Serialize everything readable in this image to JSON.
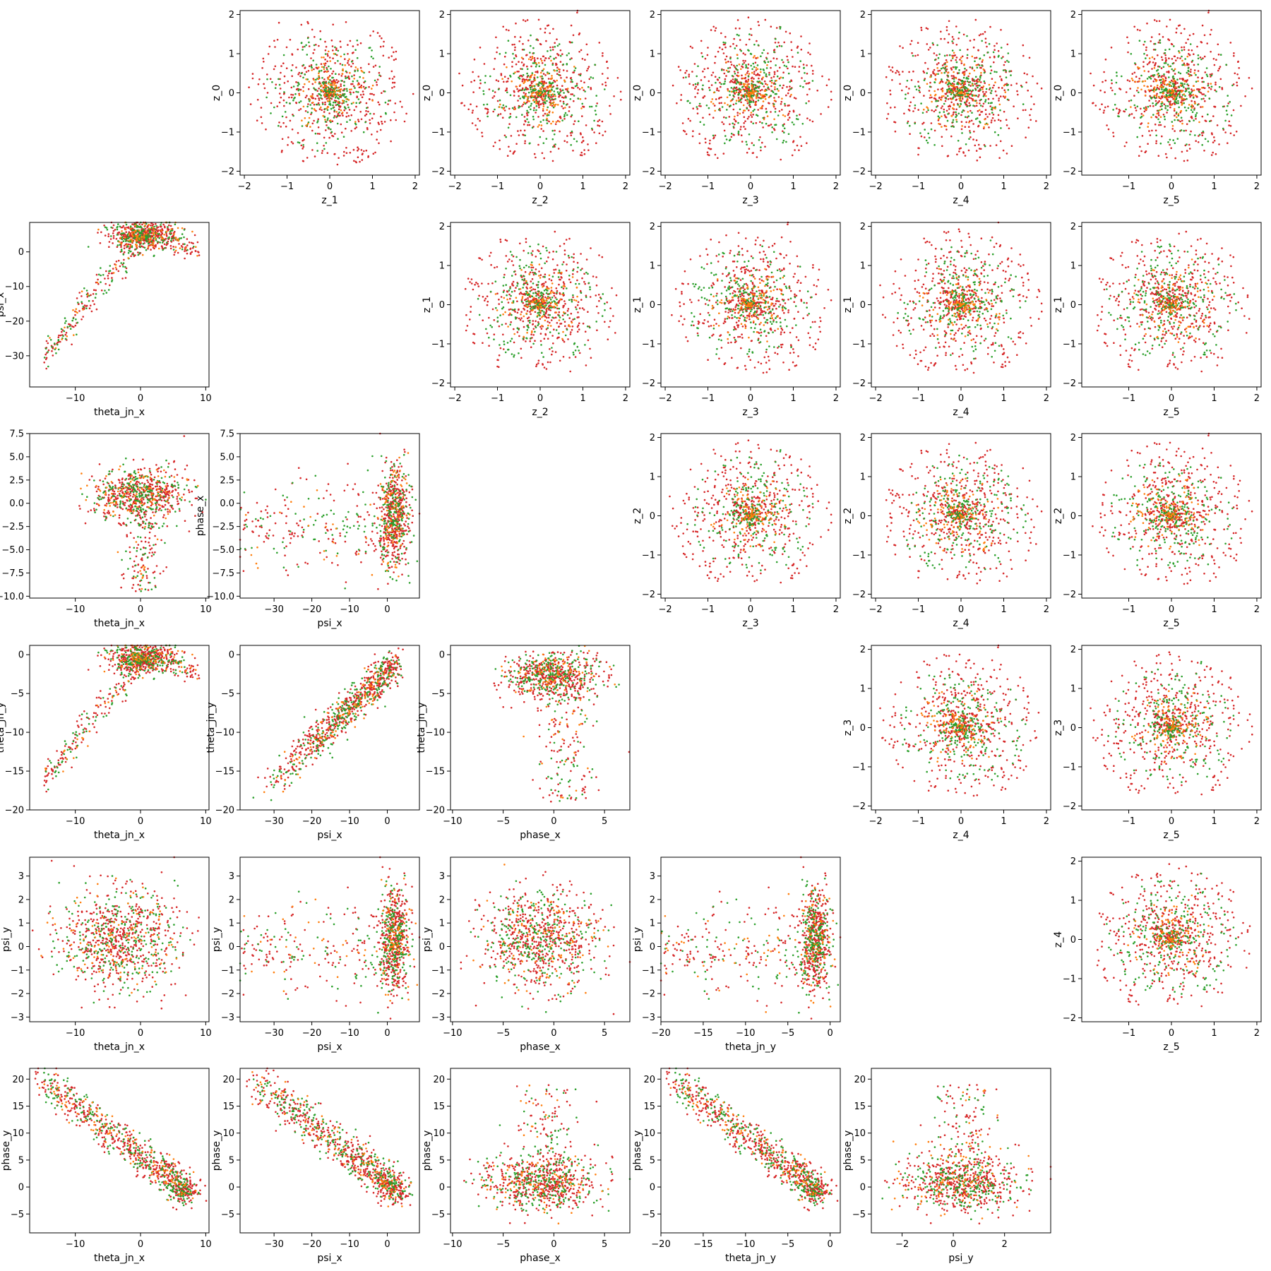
{
  "chart_data": {
    "type": "scatter",
    "colors": [
      "#d62728",
      "#2ca02c",
      "#ff7f0e"
    ],
    "variables": {
      "theta_jn_x": {
        "label": "theta_jn_x",
        "lim": [
          -17,
          10.5
        ],
        "ticks": [
          -10,
          0,
          10
        ]
      },
      "psi_x": {
        "label": "psi_x",
        "lim": [
          -39,
          8.5
        ],
        "ticks": [
          -30,
          -20,
          -10,
          0
        ]
      },
      "phase_x": {
        "label": "phase_x",
        "lim": [
          -10.2,
          7.5
        ],
        "ticks": [
          -10,
          -5,
          0,
          5
        ],
        "yticks": [
          -10.0,
          -7.5,
          -5.0,
          -2.5,
          0.0,
          2.5,
          5.0,
          7.5
        ],
        "yticklabels": [
          "−10.0",
          "−7.5",
          "−5.0",
          "−2.5",
          "0.0",
          "2.5",
          "5.0",
          "7.5"
        ]
      },
      "theta_jn_y": {
        "label": "theta_jn_y",
        "lim": [
          -20,
          1.2
        ],
        "ticks": [
          -20,
          -15,
          -10,
          -5,
          0
        ]
      },
      "psi_y": {
        "label": "psi_y",
        "lim": [
          -3.2,
          3.8
        ],
        "ticks": [
          -2,
          0,
          2
        ],
        "yticks": [
          -3,
          -2,
          -1,
          0,
          1,
          2,
          3
        ]
      },
      "phase_y": {
        "label": "phase_y",
        "lim": [
          -8.5,
          22
        ],
        "ticks": [
          -5,
          0,
          5,
          10,
          15,
          20
        ]
      },
      "z_0": {
        "label": "z_0",
        "lim": [
          -2.1,
          2.1
        ],
        "ticks": [
          -2,
          -1,
          0,
          1,
          2
        ]
      },
      "z_1": {
        "label": "z_1",
        "lim": [
          -2.1,
          2.1
        ],
        "ticks": [
          -2,
          -1,
          0,
          1,
          2
        ]
      },
      "z_2": {
        "label": "z_2",
        "lim": [
          -2.1,
          2.1
        ],
        "ticks": [
          -2,
          -1,
          0,
          1,
          2
        ]
      },
      "z_3": {
        "label": "z_3",
        "lim": [
          -2.1,
          2.1
        ],
        "ticks": [
          -2,
          -1,
          0,
          1,
          2
        ]
      },
      "z_4": {
        "label": "z_4",
        "lim": [
          -2.1,
          2.1
        ],
        "ticks": [
          -2,
          -1,
          0,
          1,
          2
        ]
      },
      "z_5": {
        "label": "z_5",
        "lim": [
          -2.1,
          2.1
        ],
        "ticks": [
          -1,
          0,
          1,
          2
        ]
      }
    },
    "panels": [
      {
        "row": 0,
        "col": 1,
        "x": "z_1",
        "y": "z_0",
        "shape": "gauss"
      },
      {
        "row": 0,
        "col": 2,
        "x": "z_2",
        "y": "z_0",
        "shape": "gauss"
      },
      {
        "row": 0,
        "col": 3,
        "x": "z_3",
        "y": "z_0",
        "shape": "gauss"
      },
      {
        "row": 0,
        "col": 4,
        "x": "z_4",
        "y": "z_0",
        "shape": "gauss"
      },
      {
        "row": 0,
        "col": 5,
        "x": "z_5",
        "y": "z_0",
        "shape": "gauss"
      },
      {
        "row": 1,
        "col": 0,
        "x": "theta_jn_x",
        "y": "psi_x",
        "shape": "arch"
      },
      {
        "row": 1,
        "col": 2,
        "x": "z_2",
        "y": "z_1",
        "shape": "gauss"
      },
      {
        "row": 1,
        "col": 3,
        "x": "z_3",
        "y": "z_1",
        "shape": "gauss"
      },
      {
        "row": 1,
        "col": 4,
        "x": "z_4",
        "y": "z_1",
        "shape": "gauss"
      },
      {
        "row": 1,
        "col": 5,
        "x": "z_5",
        "y": "z_1",
        "shape": "gauss"
      },
      {
        "row": 2,
        "col": 0,
        "x": "theta_jn_x",
        "y": "phase_x",
        "shape": "blobdown"
      },
      {
        "row": 2,
        "col": 1,
        "x": "psi_x",
        "y": "phase_x",
        "shape": "right"
      },
      {
        "row": 2,
        "col": 3,
        "x": "z_3",
        "y": "z_2",
        "shape": "gauss"
      },
      {
        "row": 2,
        "col": 4,
        "x": "z_4",
        "y": "z_2",
        "shape": "gauss"
      },
      {
        "row": 2,
        "col": 5,
        "x": "z_5",
        "y": "z_2",
        "shape": "gauss"
      },
      {
        "row": 3,
        "col": 0,
        "x": "theta_jn_x",
        "y": "theta_jn_y",
        "shape": "arch"
      },
      {
        "row": 3,
        "col": 1,
        "x": "psi_x",
        "y": "theta_jn_y",
        "shape": "diag"
      },
      {
        "row": 3,
        "col": 2,
        "x": "phase_x",
        "y": "theta_jn_y",
        "shape": "topdown"
      },
      {
        "row": 3,
        "col": 4,
        "x": "z_4",
        "y": "z_3",
        "shape": "gauss"
      },
      {
        "row": 3,
        "col": 5,
        "x": "z_5",
        "y": "z_3",
        "shape": "gauss"
      },
      {
        "row": 4,
        "col": 0,
        "x": "theta_jn_x",
        "y": "psi_y",
        "shape": "blob"
      },
      {
        "row": 4,
        "col": 1,
        "x": "psi_x",
        "y": "psi_y",
        "shape": "right"
      },
      {
        "row": 4,
        "col": 2,
        "x": "phase_x",
        "y": "psi_y",
        "shape": "blob"
      },
      {
        "row": 4,
        "col": 3,
        "x": "theta_jn_y",
        "y": "psi_y",
        "shape": "right"
      },
      {
        "row": 4,
        "col": 5,
        "x": "z_5",
        "y": "z_4",
        "shape": "gauss"
      },
      {
        "row": 5,
        "col": 0,
        "x": "theta_jn_x",
        "y": "phase_y",
        "shape": "anti"
      },
      {
        "row": 5,
        "col": 1,
        "x": "psi_x",
        "y": "phase_y",
        "shape": "anti"
      },
      {
        "row": 5,
        "col": 2,
        "x": "phase_x",
        "y": "phase_y",
        "shape": "blobup"
      },
      {
        "row": 5,
        "col": 3,
        "x": "theta_jn_y",
        "y": "phase_y",
        "shape": "anti"
      },
      {
        "row": 5,
        "col": 4,
        "x": "psi_y",
        "y": "phase_y",
        "shape": "blobup"
      }
    ]
  }
}
